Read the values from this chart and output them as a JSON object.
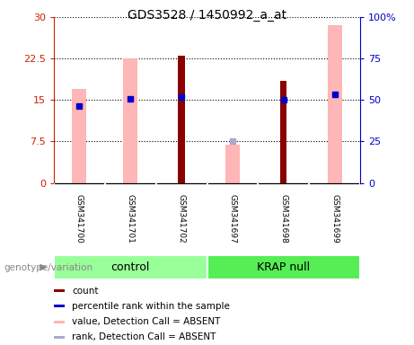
{
  "title": "GDS3528 / 1450992_a_at",
  "samples": [
    "GSM341700",
    "GSM341701",
    "GSM341702",
    "GSM341697",
    "GSM341698",
    "GSM341699"
  ],
  "ylim_left": [
    0,
    30
  ],
  "ylim_right": [
    0,
    100
  ],
  "yticks_left": [
    0,
    7.5,
    15,
    22.5,
    30
  ],
  "yticks_right": [
    0,
    25,
    50,
    75,
    100
  ],
  "yticklabels_left": [
    "0",
    "7.5",
    "15",
    "22.5",
    "30"
  ],
  "yticklabels_right": [
    "0",
    "25",
    "50",
    "75",
    "100%"
  ],
  "left_axis_color": "#cc2200",
  "right_axis_color": "#0000cc",
  "count_bars": {
    "GSM341700": null,
    "GSM341701": null,
    "GSM341702": 23.0,
    "GSM341697": null,
    "GSM341698": 18.5,
    "GSM341699": null
  },
  "percentile_rank_dots_left_scale": {
    "GSM341700": 14.0,
    "GSM341701": 15.2,
    "GSM341702": 15.5,
    "GSM341697": null,
    "GSM341698": 15.0,
    "GSM341699": 16.0
  },
  "absent_value_bars": {
    "GSM341700": 17.0,
    "GSM341701": 22.5,
    "GSM341702": null,
    "GSM341697": 7.0,
    "GSM341698": null,
    "GSM341699": 28.5
  },
  "absent_rank_dots_left_scale": {
    "GSM341700": null,
    "GSM341701": null,
    "GSM341702": null,
    "GSM341697": 7.5,
    "GSM341698": null,
    "GSM341699": 16.0
  },
  "count_bar_color": "#8b0000",
  "absent_value_bar_color": "#ffb6b6",
  "percentile_dot_color": "#0000cc",
  "absent_rank_dot_color": "#aaaacc",
  "bg_color": "#ffffff",
  "plot_bg_color": "#ffffff",
  "sample_box_color": "#cccccc",
  "control_group_color": "#99ff99",
  "krap_group_color": "#55ee55",
  "genotype_label_color": "#888888",
  "legend_items": [
    {
      "label": "count",
      "color": "#8b0000"
    },
    {
      "label": "percentile rank within the sample",
      "color": "#0000cc"
    },
    {
      "label": "value, Detection Call = ABSENT",
      "color": "#ffb6b6"
    },
    {
      "label": "rank, Detection Call = ABSENT",
      "color": "#aaaacc"
    }
  ]
}
